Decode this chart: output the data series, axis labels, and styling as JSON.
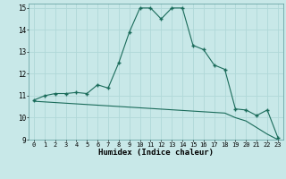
{
  "xlabel": "Humidex (Indice chaleur)",
  "background_color": "#c8e8e8",
  "grid_color": "#b0d8d8",
  "line_color": "#1a6b5a",
  "xlim": [
    -0.5,
    23.5
  ],
  "ylim": [
    9,
    15.2
  ],
  "yticks": [
    9,
    10,
    11,
    12,
    13,
    14,
    15
  ],
  "xticks": [
    0,
    1,
    2,
    3,
    4,
    5,
    6,
    7,
    8,
    9,
    10,
    11,
    12,
    13,
    14,
    15,
    16,
    17,
    18,
    19,
    20,
    21,
    22,
    23
  ],
  "curve1_x": [
    0,
    1,
    2,
    3,
    4,
    5,
    6,
    7,
    8,
    9,
    10,
    11,
    12,
    13,
    14,
    15,
    16,
    17,
    18,
    19,
    20,
    21,
    22,
    23
  ],
  "curve1_y": [
    10.8,
    11.0,
    11.1,
    11.1,
    11.15,
    11.1,
    11.5,
    11.35,
    12.5,
    13.9,
    15.0,
    15.0,
    14.5,
    15.0,
    15.0,
    13.3,
    13.1,
    12.4,
    12.2,
    10.4,
    10.35,
    10.1,
    10.35,
    9.1
  ],
  "curve2_x": [
    0,
    1,
    2,
    3,
    4,
    5,
    6,
    7,
    8,
    9,
    10,
    11,
    12,
    13,
    14,
    15,
    16,
    17,
    18,
    19,
    20,
    21,
    22,
    23
  ],
  "curve2_y": [
    10.75,
    10.72,
    10.69,
    10.66,
    10.63,
    10.6,
    10.57,
    10.54,
    10.51,
    10.48,
    10.45,
    10.42,
    10.39,
    10.36,
    10.33,
    10.3,
    10.27,
    10.24,
    10.21,
    10.0,
    9.85,
    9.55,
    9.25,
    9.0
  ],
  "ylabel_fontsize": 5.5,
  "xlabel_fontsize": 6.5,
  "tick_fontsize": 5.0
}
